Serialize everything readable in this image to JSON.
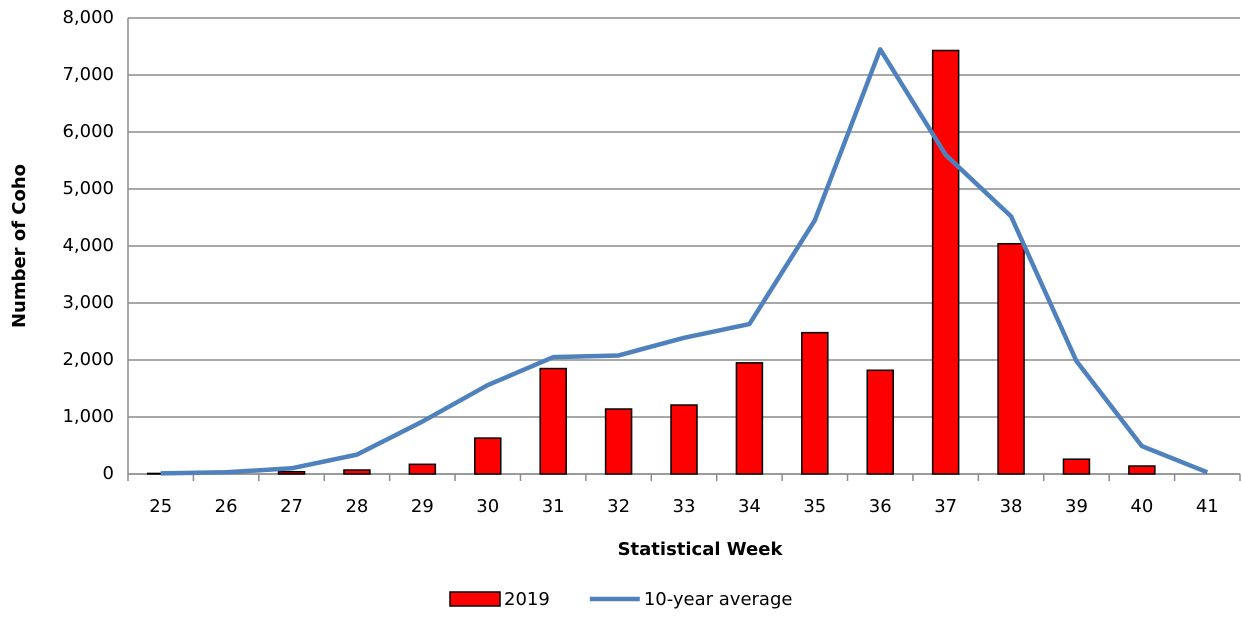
{
  "chart_data": {
    "type": "bar_line",
    "x_label": "Statistical Week",
    "y_label": "Number of Coho",
    "categories": [
      "25",
      "26",
      "27",
      "28",
      "29",
      "30",
      "31",
      "32",
      "33",
      "34",
      "35",
      "36",
      "37",
      "38",
      "39",
      "40",
      "41"
    ],
    "series": [
      {
        "name": "2019",
        "type": "bar",
        "color": "#ff0000",
        "values": [
          10,
          0,
          40,
          70,
          170,
          630,
          1850,
          1140,
          1210,
          1950,
          2480,
          1820,
          7430,
          4040,
          260,
          140,
          0
        ]
      },
      {
        "name": "10-year average",
        "type": "line",
        "color": "#4f81bd",
        "values": [
          10,
          30,
          100,
          340,
          920,
          1560,
          2050,
          2080,
          2390,
          2630,
          4450,
          7450,
          5600,
          4520,
          1980,
          490,
          30
        ]
      }
    ],
    "ylim": [
      0,
      8000
    ],
    "yticks": [
      0,
      {
        "value": 1000,
        "label": "1,000"
      },
      {
        "value": 2000,
        "label": "2,000"
      },
      {
        "value": 3000,
        "label": "3,000"
      },
      {
        "value": 4000,
        "label": "4,000"
      },
      {
        "value": 5000,
        "label": "5,000"
      },
      {
        "value": 6000,
        "label": "6,000"
      },
      {
        "value": 7000,
        "label": "7,000"
      },
      {
        "value": 8000,
        "label": "8,000"
      }
    ],
    "grid": true,
    "legend": "bottom"
  }
}
